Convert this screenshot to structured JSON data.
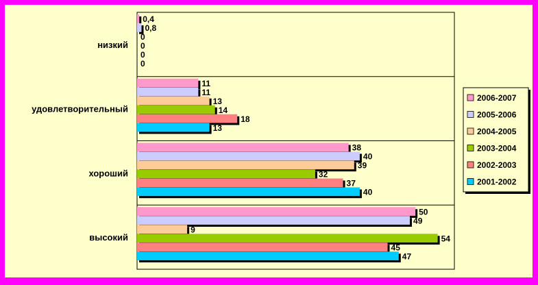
{
  "chart_data": {
    "type": "bar",
    "orientation": "horizontal",
    "title": "",
    "xlabel": "",
    "ylabel": "",
    "categories": [
      "низкий",
      "удовлетворительный",
      "хороший",
      "высокий"
    ],
    "series": [
      {
        "name": "2006-2007",
        "color": "#ff99cc",
        "values": [
          0.4,
          11,
          38,
          50
        ],
        "labels": [
          "0,4",
          "11",
          "38",
          "50"
        ]
      },
      {
        "name": "2005-2006",
        "color": "#ccccff",
        "values": [
          0.8,
          11,
          40,
          49
        ],
        "labels": [
          "0,8",
          "11",
          "40",
          "49"
        ]
      },
      {
        "name": "2004-2005",
        "color": "#ffcc99",
        "values": [
          0,
          13,
          39,
          9
        ],
        "labels": [
          "0",
          "13",
          "39",
          "9"
        ]
      },
      {
        "name": "2003-2004",
        "color": "#99cc00",
        "values": [
          0,
          14,
          32,
          54
        ],
        "labels": [
          "0",
          "14",
          "32",
          "54"
        ]
      },
      {
        "name": "2002-2003",
        "color": "#ff8080",
        "values": [
          0,
          18,
          37,
          45
        ],
        "labels": [
          "0",
          "18",
          "37",
          "45"
        ]
      },
      {
        "name": "2001-2002",
        "color": "#00ccff",
        "values": [
          0,
          13,
          40,
          47
        ],
        "labels": [
          "0",
          "13",
          "40",
          "47"
        ]
      }
    ],
    "xlim": [
      0,
      57
    ],
    "grid": false,
    "legend_position": "right",
    "colors": {
      "background": "#ff00ff",
      "panel": "#ffffcc",
      "plot_area": "#ffffcc",
      "shadow": "#000000"
    }
  }
}
